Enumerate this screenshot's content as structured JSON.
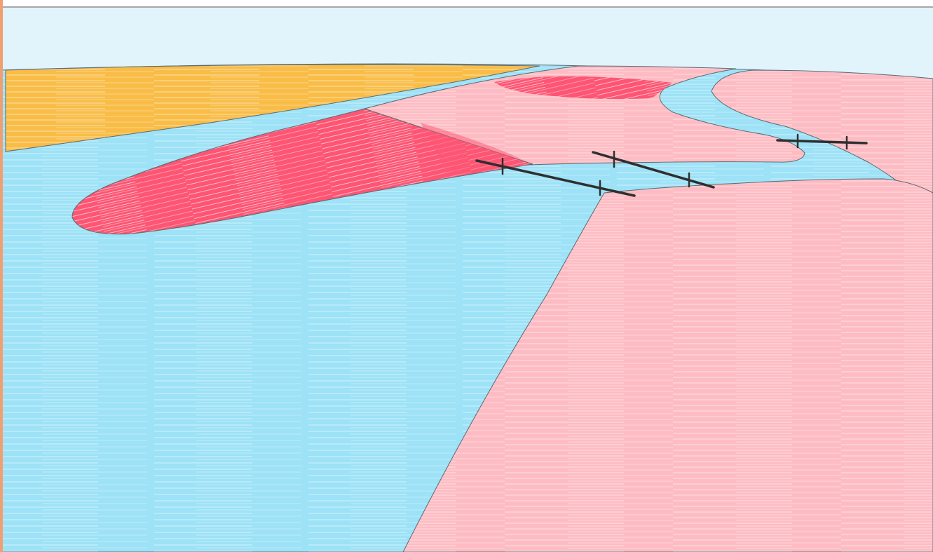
{
  "scene": {
    "colors": {
      "sky": "#e1f3fb",
      "water": "#9de2f7",
      "land_pink": "#fdbcc3",
      "land_red": "#fd5573",
      "land_orange": "#f9bd47",
      "outline": "#5a6a72",
      "line": "#2f2f2f",
      "frame_left": "#f0a070",
      "frame_top": "#a8a8a8"
    },
    "regions": [
      {
        "name": "sky-region",
        "fill": "sky"
      },
      {
        "name": "water-region",
        "fill": "water"
      },
      {
        "name": "orange-land-region",
        "fill": "land_orange"
      },
      {
        "name": "upper-pink-land-region",
        "fill": "land_pink"
      },
      {
        "name": "upper-red-strip-region",
        "fill": "land_red"
      },
      {
        "name": "red-peninsula-region",
        "fill": "land_red"
      },
      {
        "name": "right-pink-land-region",
        "fill": "land_pink"
      },
      {
        "name": "far-pink-land-region",
        "fill": "land_pink"
      },
      {
        "name": "lower-pink-land-region",
        "fill": "land_pink"
      }
    ],
    "line_features": [
      {
        "name": "crossing-line-left",
        "ticks": 2
      },
      {
        "name": "crossing-line-middle",
        "ticks": 2
      },
      {
        "name": "crossing-line-right",
        "ticks": 2
      }
    ]
  }
}
